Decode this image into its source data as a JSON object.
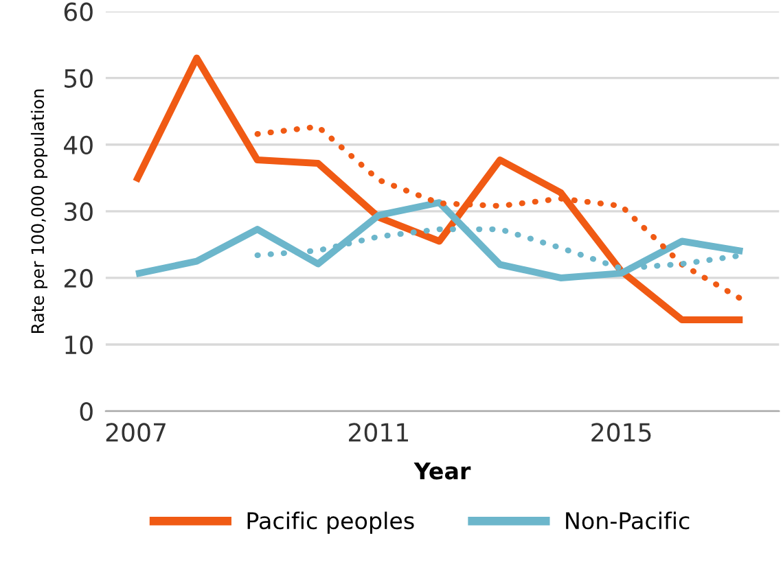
{
  "chart_data": {
    "type": "line",
    "xlabel": "Year",
    "ylabel": "Rate per 100,000 population",
    "x": [
      2007,
      2008,
      2009,
      2010,
      2011,
      2012,
      2013,
      2014,
      2015,
      2016,
      2017
    ],
    "series": [
      {
        "name": "Pacific peoples",
        "color": "#f05a14",
        "values": [
          34.5,
          53,
          37.7,
          37.2,
          29.1,
          25.5,
          37.7,
          32.8,
          21,
          13.7,
          13.7
        ]
      },
      {
        "name": "Non-Pacific",
        "color": "#6cb6cb",
        "values": [
          20.6,
          22.5,
          27.3,
          22.1,
          29.4,
          31.3,
          22,
          20,
          20.7,
          25.5,
          24
        ]
      },
      {
        "color": "#f05a14",
        "line_style": "dotted",
        "values": [
          null,
          null,
          41.6,
          42.7,
          34.7,
          31.2,
          30.8,
          31.9,
          30.8,
          22,
          16.7
        ]
      },
      {
        "color": "#6cb6cb",
        "line_style": "dotted",
        "values": [
          null,
          null,
          23.4,
          24.1,
          26.2,
          27.3,
          27.3,
          24.5,
          21.4,
          22.1,
          23.4
        ]
      }
    ],
    "xlim": [
      2006.5,
      2017.6
    ],
    "xticks": [
      2007,
      2011,
      2015
    ],
    "ylim": [
      0,
      60
    ],
    "yticks": [
      0,
      10,
      20,
      30,
      40,
      50,
      60
    ],
    "grid": "y",
    "legend": "bottom",
    "marker": "none"
  }
}
